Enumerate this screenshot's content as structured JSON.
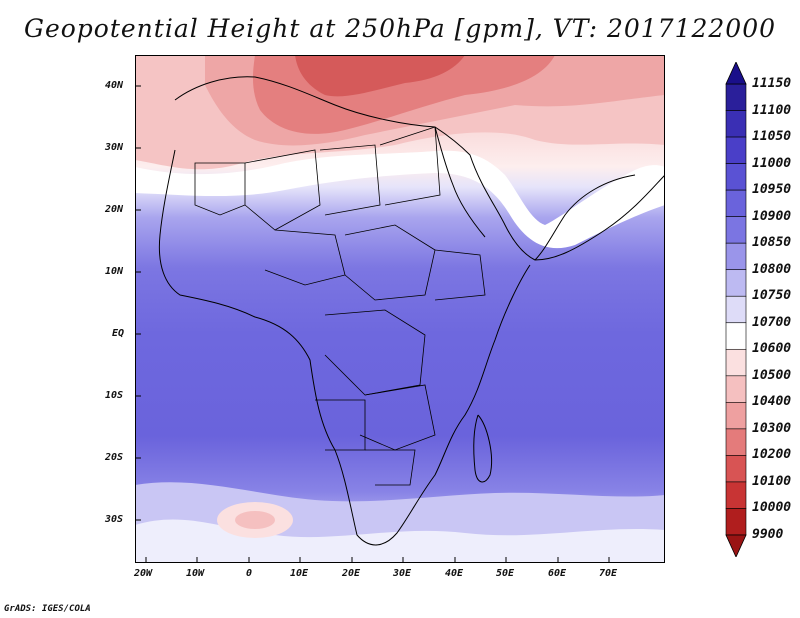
{
  "title": "Geopotential Height at 250hPa [gpm], VT: 2017122000",
  "credit": "GrADS: IGES/COLA",
  "axes": {
    "lat_labels": [
      "40N",
      "30N",
      "20N",
      "10N",
      "EQ",
      "10S",
      "20S",
      "30S"
    ],
    "lon_labels": [
      "20W",
      "10W",
      "0",
      "10E",
      "20E",
      "30E",
      "40E",
      "50E",
      "60E",
      "70E"
    ]
  },
  "colorbar": {
    "levels": [
      "11150",
      "11100",
      "11050",
      "11000",
      "10950",
      "10900",
      "10850",
      "10800",
      "10750",
      "10700",
      "10600",
      "10500",
      "10400",
      "10300",
      "10200",
      "10100",
      "10000",
      "9900"
    ],
    "colors": [
      "#2a1f9a",
      "#3a2fb4",
      "#4a3fc8",
      "#5a52d4",
      "#6a63dc",
      "#7b75e2",
      "#9a95ea",
      "#bdbaf2",
      "#dedcf8",
      "#ffffff",
      "#fbe0e0",
      "#f5c0c0",
      "#eea0a0",
      "#e47b7b",
      "#d85454",
      "#c83434",
      "#b01e1e"
    ],
    "top_arrow_color": "#1a0f8a",
    "bottom_arrow_color": "#9a1414"
  },
  "chart_data": {
    "type": "heatmap",
    "variable": "Geopotential Height at 250hPa",
    "units": "gpm",
    "valid_time": "2017122000",
    "lon_range": [
      -22,
      80
    ],
    "lat_range": [
      -37,
      45
    ],
    "scale_min": 9900,
    "scale_max": 11150
  }
}
